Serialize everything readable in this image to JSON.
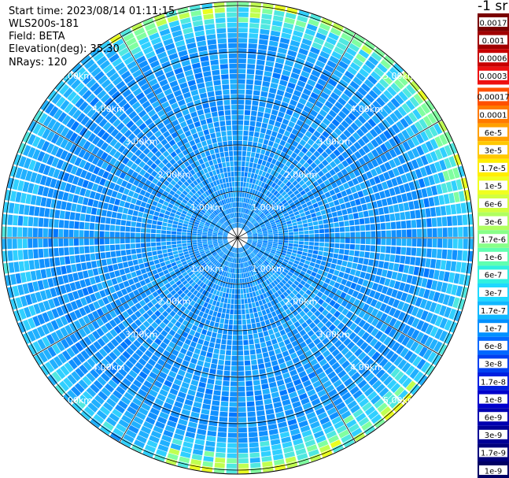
{
  "info": {
    "start_time": "Start time: 2023/08/14 01:11:15",
    "instrument": "WLS200s-181",
    "field": "Field: BETA",
    "elevation": "Elevation(deg): 35.30",
    "nrays": "NRays: 120"
  },
  "nrays": 120,
  "range_ring_labels": [
    "1.00km",
    "2.00km",
    "3.00km",
    "4.00km",
    "5.00km"
  ],
  "colorbar": {
    "title": "-1 sr",
    "labels": [
      "0.0017",
      "0.001",
      "0.0006",
      "0.0003",
      "0.00017",
      "0.0001",
      "6e-5",
      "3e-5",
      "1.7e-5",
      "1e-5",
      "6e-6",
      "3e-6",
      "1.7e-6",
      "1e-6",
      "6e-7",
      "3e-7",
      "1.7e-7",
      "1e-7",
      "6e-8",
      "3e-8",
      "1.7e-8",
      "1e-8",
      "6e-9",
      "3e-9",
      "1.7e-9",
      "1e-9"
    ],
    "colors": [
      "#7a0000",
      "#a00000",
      "#c80000",
      "#ee1010",
      "#ff5000",
      "#ff7a00",
      "#ffa000",
      "#ffc800",
      "#ffee00",
      "#f0ff20",
      "#d2ff40",
      "#b0ff60",
      "#88ff88",
      "#60ffb0",
      "#30f0e0",
      "#20d8ff",
      "#10b8ff",
      "#0090ff",
      "#0068ff",
      "#0040f0",
      "#0020e0",
      "#0000cc",
      "#0000b0",
      "#000096",
      "#00007c",
      "#000064"
    ]
  }
}
